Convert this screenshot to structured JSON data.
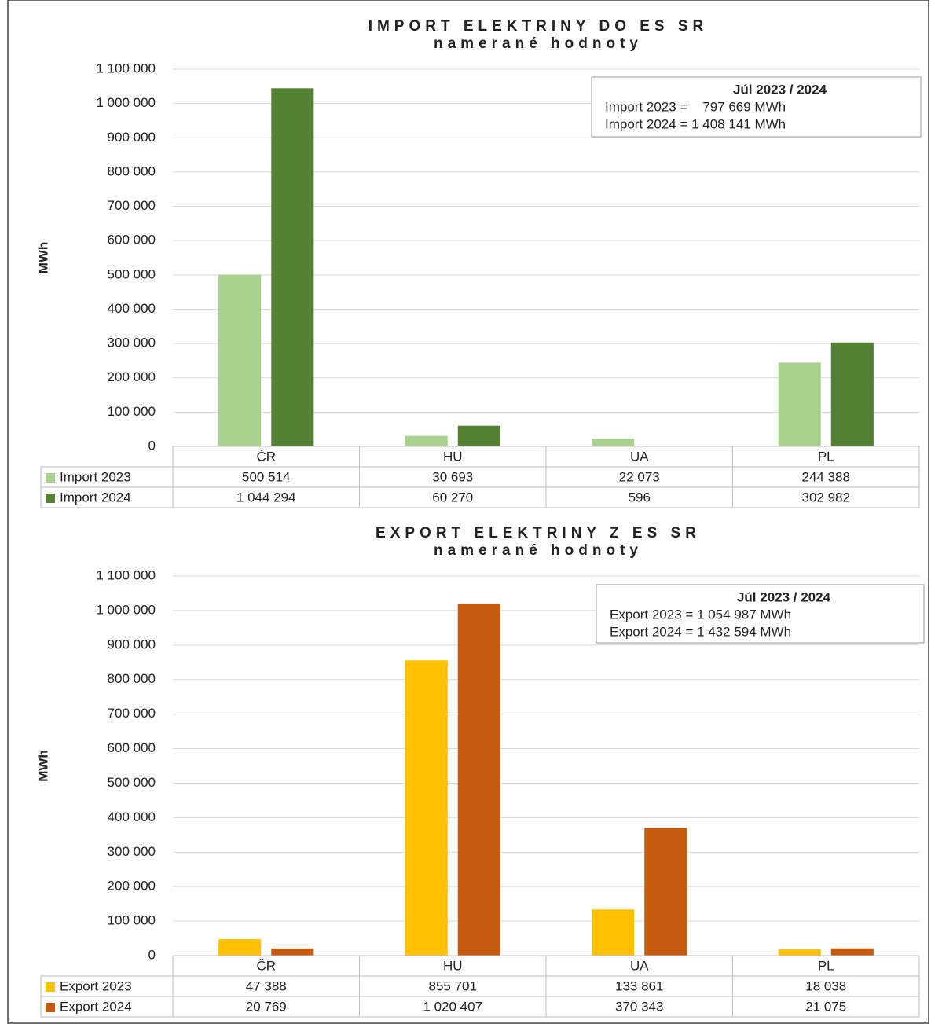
{
  "chart_data": [
    {
      "type": "bar",
      "title": "IMPORT ELEKTRINY DO ES SR",
      "subtitle": "namerané hodnoty",
      "y_label": "MWh",
      "categories": [
        "ČR",
        "HU",
        "UA",
        "PL"
      ],
      "series": [
        {
          "name": "Import 2023",
          "color": "#a9d18e",
          "values": [
            500514,
            30693,
            22073,
            244388
          ],
          "value_labels": [
            "500 514",
            "30 693",
            "22 073",
            "244 388"
          ]
        },
        {
          "name": "Import 2024",
          "color": "#548235",
          "values": [
            1044294,
            60270,
            596,
            302982
          ],
          "value_labels": [
            "1 044 294",
            "60 270",
            "596",
            "302 982"
          ]
        }
      ],
      "ylim": [
        0,
        1100000
      ],
      "yticks": [
        0,
        {
          "value": 100000,
          "label": "100 000"
        },
        {
          "value": 200000,
          "label": "200 000"
        },
        {
          "value": 300000,
          "label": "300 000"
        },
        {
          "value": 400000,
          "label": "400 000"
        },
        {
          "value": 500000,
          "label": "500 000"
        },
        {
          "value": 600000,
          "label": "600 000"
        },
        {
          "value": 700000,
          "label": "700 000"
        },
        {
          "value": 800000,
          "label": "800 000"
        },
        {
          "value": 900000,
          "label": "900 000"
        },
        {
          "value": 1000000,
          "label": "1 000 000"
        },
        {
          "value": 1100000,
          "label": "1 100 000"
        }
      ],
      "grid": true,
      "annotation": {
        "title": "Júl 2023 / 2024",
        "lines": [
          "Import 2023 =    797 669 MWh",
          "Import 2024 = 1 408 141 MWh"
        ]
      }
    },
    {
      "type": "bar",
      "title": "EXPORT ELEKTRINY Z ES SR",
      "subtitle": "namerané hodnoty",
      "y_label": "MWh",
      "categories": [
        "ČR",
        "HU",
        "UA",
        "PL"
      ],
      "series": [
        {
          "name": "Export 2023",
          "color": "#ffc000",
          "values": [
            47388,
            855701,
            133861,
            18038
          ],
          "value_labels": [
            "47 388",
            "855 701",
            "133 861",
            "18 038"
          ]
        },
        {
          "name": "Export 2024",
          "color": "#c55a11",
          "values": [
            20769,
            1020407,
            370343,
            21075
          ],
          "value_labels": [
            "20 769",
            "1 020 407",
            "370 343",
            "21 075"
          ]
        }
      ],
      "ylim": [
        0,
        1100000
      ],
      "yticks": [
        0,
        {
          "value": 100000,
          "label": "100 000"
        },
        {
          "value": 200000,
          "label": "200 000"
        },
        {
          "value": 300000,
          "label": "300 000"
        },
        {
          "value": 400000,
          "label": "400 000"
        },
        {
          "value": 500000,
          "label": "500 000"
        },
        {
          "value": 600000,
          "label": "600 000"
        },
        {
          "value": 700000,
          "label": "700 000"
        },
        {
          "value": 800000,
          "label": "800 000"
        },
        {
          "value": 900000,
          "label": "900 000"
        },
        {
          "value": 1000000,
          "label": "1 000 000"
        },
        {
          "value": 1100000,
          "label": "1 100 000"
        }
      ],
      "grid": true,
      "annotation": {
        "title": "Júl 2023 / 2024",
        "lines": [
          "Export 2023 = 1 054 987 MWh",
          "Export 2024 = 1 432 594 MWh"
        ]
      }
    }
  ]
}
